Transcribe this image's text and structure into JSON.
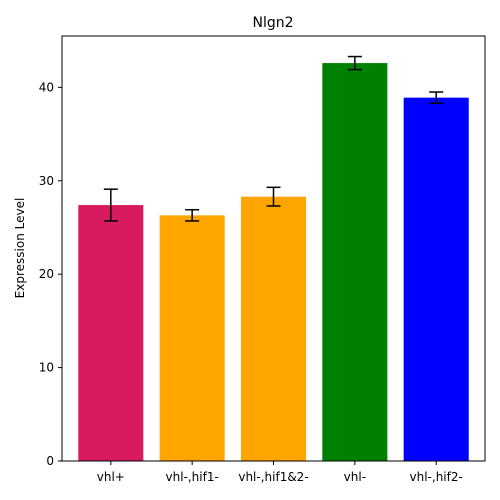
{
  "chart_data": {
    "type": "bar",
    "title": "Nlgn2",
    "xlabel": "",
    "ylabel": "Expression Level",
    "categories": [
      "vhl+",
      "vhl-,hif1-",
      "vhl-,hif1&2-",
      "vhl-",
      "vhl-,hif2-"
    ],
    "values": [
      27.4,
      26.3,
      28.3,
      42.6,
      38.9
    ],
    "errors": [
      1.7,
      0.6,
      1.0,
      0.7,
      0.6
    ],
    "colors": [
      "#d81b60",
      "#ffa500",
      "#ffa500",
      "#008000",
      "#0000ff"
    ],
    "ylim": [
      0,
      45.5
    ],
    "yticks": [
      0,
      10,
      20,
      30,
      40
    ],
    "grid": false,
    "legend": "none"
  }
}
